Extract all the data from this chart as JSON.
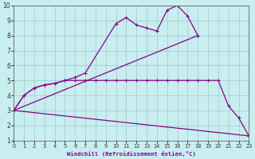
{
  "xlabel": "Windchill (Refroidissement éolien,°C)",
  "xlim": [
    0,
    23
  ],
  "ylim": [
    1,
    10
  ],
  "xticks": [
    0,
    1,
    2,
    3,
    4,
    5,
    6,
    7,
    8,
    9,
    10,
    11,
    12,
    13,
    14,
    15,
    16,
    17,
    18,
    19,
    20,
    21,
    22,
    23
  ],
  "yticks": [
    1,
    2,
    3,
    4,
    5,
    6,
    7,
    8,
    9,
    10
  ],
  "bg_color": "#c8eef0",
  "grid_color": "#9fc8ca",
  "line_color": "#880088",
  "line_width": 0.9,
  "marker_size": 3.5,
  "line1_x": [
    0,
    1,
    2,
    3,
    4,
    5,
    6,
    7,
    10,
    11,
    12,
    13,
    14,
    15,
    16,
    17,
    18
  ],
  "line1_y": [
    3.0,
    4.0,
    4.5,
    4.7,
    4.8,
    5.0,
    5.2,
    5.5,
    8.8,
    9.2,
    8.7,
    8.5,
    8.3,
    9.7,
    10.0,
    9.3,
    8.0
  ],
  "line2_x": [
    0,
    18
  ],
  "line2_y": [
    3.0,
    8.0
  ],
  "line3_x": [
    0,
    1,
    2,
    3,
    4,
    5,
    6,
    7,
    8,
    9,
    10,
    11,
    12,
    13,
    14,
    15,
    16,
    17,
    18,
    19,
    20,
    21,
    22,
    23
  ],
  "line3_y": [
    3.0,
    4.0,
    4.5,
    4.7,
    4.8,
    5.0,
    5.0,
    5.0,
    5.0,
    5.0,
    5.0,
    5.0,
    5.0,
    5.0,
    5.0,
    5.0,
    5.0,
    5.0,
    5.0,
    5.0,
    5.0,
    3.3,
    2.5,
    1.3
  ],
  "line4_x": [
    0,
    23
  ],
  "line4_y": [
    3.0,
    1.3
  ]
}
